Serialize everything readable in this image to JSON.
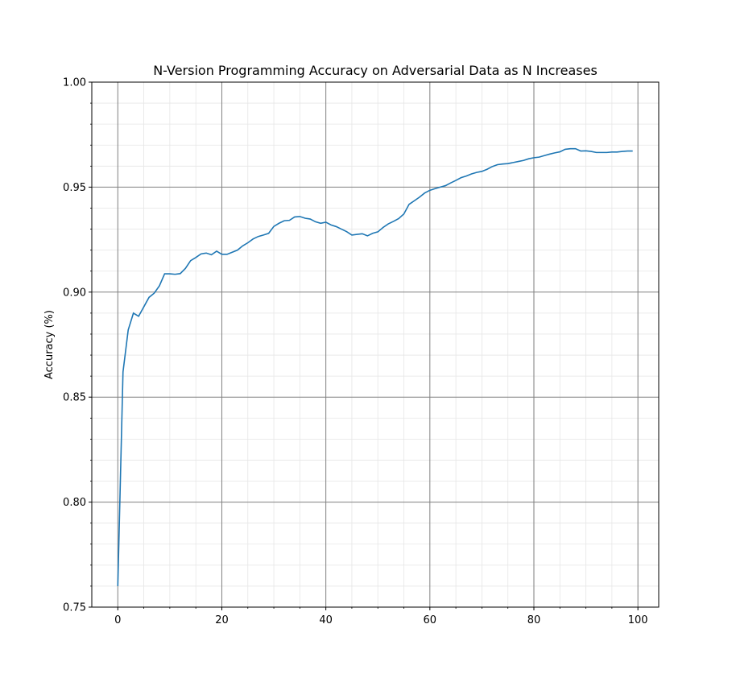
{
  "chart_data": {
    "type": "line",
    "title": "N-Version Programming Accuracy on Adversarial Data as N Increases",
    "xlabel": "",
    "ylabel": "Accuracy (%)",
    "xlim": [
      -5,
      104
    ],
    "ylim": [
      0.75,
      1.0
    ],
    "x_ticks": [
      0,
      20,
      40,
      60,
      80,
      100
    ],
    "y_ticks": [
      0.75,
      0.8,
      0.85,
      0.9,
      0.95,
      1.0
    ],
    "x_tick_labels": [
      "0",
      "20",
      "40",
      "60",
      "80",
      "100"
    ],
    "y_tick_labels": [
      "0.75",
      "0.80",
      "0.85",
      "0.90",
      "0.95",
      "1.00"
    ],
    "grid": {
      "major": true,
      "minor": true
    },
    "colors": {
      "line": "#1f77b4",
      "major_grid": "#808080",
      "minor_grid": "#e6e6e6"
    },
    "series": [
      {
        "x": [
          0,
          1,
          2,
          3,
          4,
          5,
          6,
          7,
          8,
          9,
          10,
          11,
          12,
          13,
          14,
          15,
          16,
          17,
          18,
          19,
          20,
          21,
          22,
          23,
          24,
          25,
          26,
          27,
          28,
          29,
          30,
          31,
          32,
          33,
          34,
          35,
          36,
          37,
          38,
          39,
          40,
          41,
          42,
          43,
          44,
          45,
          46,
          47,
          48,
          49,
          50,
          51,
          52,
          53,
          54,
          55,
          56,
          57,
          58,
          59,
          60,
          61,
          62,
          63,
          64,
          65,
          66,
          67,
          68,
          69,
          70,
          71,
          72,
          73,
          74,
          75,
          76,
          77,
          78,
          79,
          80,
          81,
          82,
          83,
          84,
          85,
          86,
          87,
          88,
          89,
          90,
          91,
          92,
          93,
          94,
          95,
          96,
          97,
          98,
          99
        ],
        "values": [
          0.76,
          0.862,
          0.882,
          0.89,
          0.8885,
          0.893,
          0.8975,
          0.8995,
          0.903,
          0.9087,
          0.9087,
          0.9085,
          0.9088,
          0.9113,
          0.915,
          0.9165,
          0.9182,
          0.9186,
          0.9178,
          0.9195,
          0.918,
          0.918,
          0.919,
          0.92,
          0.922,
          0.9235,
          0.9253,
          0.9265,
          0.9272,
          0.928,
          0.9313,
          0.9328,
          0.934,
          0.9342,
          0.9358,
          0.936,
          0.9352,
          0.9348,
          0.9335,
          0.9328,
          0.9333,
          0.932,
          0.9312,
          0.93,
          0.9288,
          0.9272,
          0.9275,
          0.9278,
          0.9268,
          0.928,
          0.9287,
          0.9308,
          0.9325,
          0.9337,
          0.935,
          0.9372,
          0.9418,
          0.9435,
          0.9452,
          0.9472,
          0.9485,
          0.9493,
          0.95,
          0.9507,
          0.952,
          0.9532,
          0.9545,
          0.9553,
          0.9563,
          0.957,
          0.9575,
          0.9585,
          0.9598,
          0.9607,
          0.961,
          0.9612,
          0.9617,
          0.9622,
          0.9627,
          0.9635,
          0.964,
          0.9643,
          0.965,
          0.9657,
          0.9663,
          0.9668,
          0.968,
          0.9683,
          0.9683,
          0.9672,
          0.9673,
          0.967,
          0.9665,
          0.9665,
          0.9665,
          0.9667,
          0.9667,
          0.967,
          0.9672,
          0.9672
        ]
      }
    ]
  }
}
